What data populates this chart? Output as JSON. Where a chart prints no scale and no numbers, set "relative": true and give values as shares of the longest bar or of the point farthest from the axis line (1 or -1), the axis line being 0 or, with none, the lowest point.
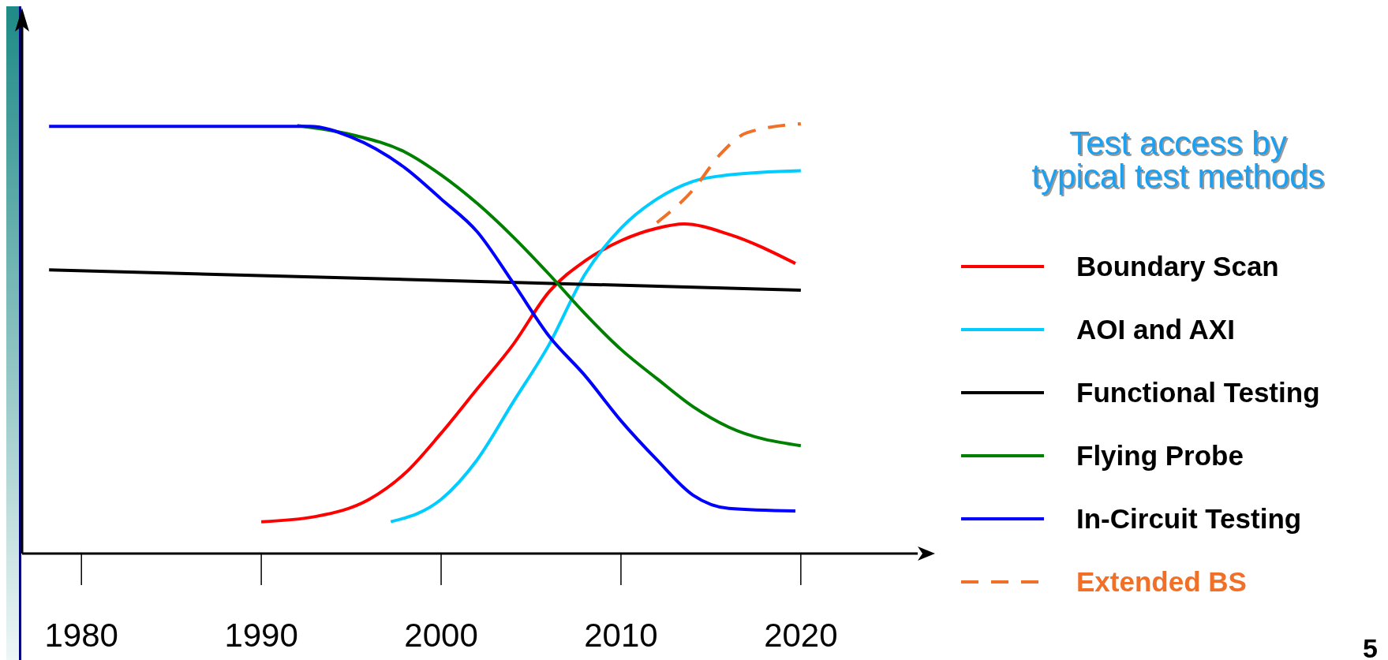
{
  "chart_data": {
    "type": "line",
    "relative": true,
    "xlim": [
      1976.7,
      2026.5
    ],
    "xticks": [
      1980,
      1990,
      2000,
      2010,
      2020
    ],
    "legend": "right",
    "legend_title": "Test access by typical test methods",
    "line_style": "solid",
    "annotations": [
      "5"
    ],
    "series": [
      {
        "name": "Boundary Scan",
        "color": "#ff0000",
        "x": [
          1990,
          1993,
          1996,
          1998,
          2000,
          2002,
          2004,
          2006,
          2008,
          2010,
          2012,
          2013.5,
          2016,
          2019.7
        ],
        "values": [
          0.074,
          0.086,
          0.126,
          0.187,
          0.28,
          0.383,
          0.486,
          0.609,
          0.681,
          0.728,
          0.757,
          0.767,
          0.743,
          0.675
        ]
      },
      {
        "name": "AOI and AXI",
        "color": "#00ccff",
        "x": [
          1997.2,
          2000,
          2002,
          2004,
          2006,
          2008,
          2010,
          2012,
          2014,
          2016,
          2020
        ],
        "values": [
          0.074,
          0.126,
          0.218,
          0.352,
          0.486,
          0.65,
          0.757,
          0.825,
          0.866,
          0.881,
          0.891
        ]
      },
      {
        "name": "Functional Testing",
        "color": "#000000",
        "x": [
          1978.2,
          2020
        ],
        "values": [
          0.66,
          0.613
        ]
      },
      {
        "name": "Flying Probe",
        "color": "#008000",
        "x": [
          1992,
          1995,
          1998,
          2000,
          2002,
          2004,
          2006,
          2008,
          2010,
          2012,
          2014,
          2016,
          2020
        ],
        "values": [
          0.996,
          0.975,
          0.934,
          0.881,
          0.815,
          0.737,
          0.65,
          0.558,
          0.475,
          0.407,
          0.342,
          0.294,
          0.251
        ]
      },
      {
        "name": "In-Circuit Testing",
        "color": "#0000ff",
        "x": [
          1978.2,
          1992.7,
          1995,
          1998,
          2000,
          2002,
          2004,
          2006,
          2008,
          2010,
          2012,
          2014,
          2016,
          2019.7
        ],
        "values": [
          0.994,
          0.994,
          0.969,
          0.897,
          0.825,
          0.749,
          0.63,
          0.506,
          0.414,
          0.309,
          0.218,
          0.136,
          0.105,
          0.099
        ]
      },
      {
        "name": "Extended BS",
        "color": "#f07028",
        "line_style": "dashed",
        "x": [
          2012,
          2014,
          2015.5,
          2017,
          2020
        ],
        "values": [
          0.77,
          0.846,
          0.928,
          0.979,
          1.0
        ]
      }
    ]
  }
}
